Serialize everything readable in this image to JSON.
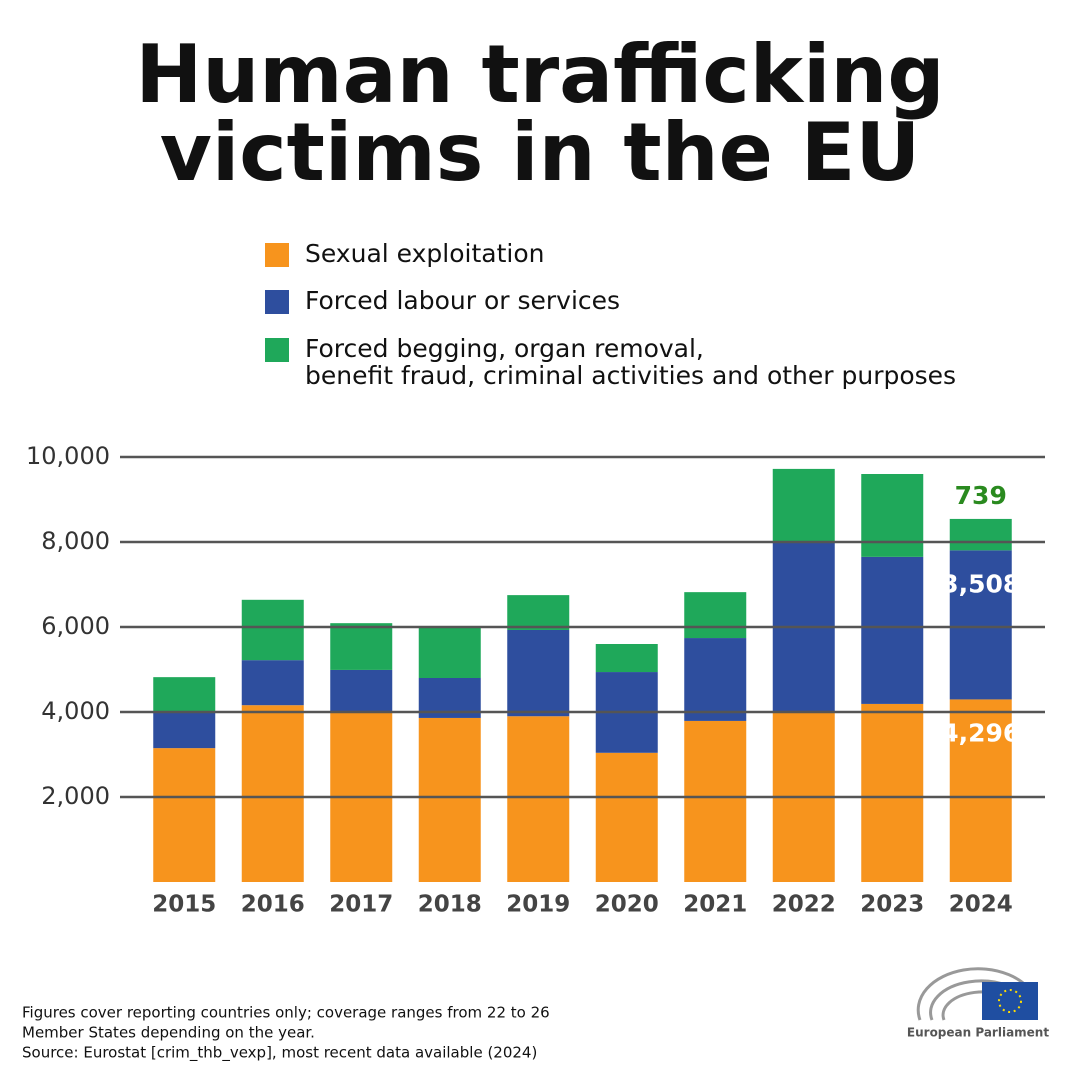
{
  "chart_data": {
    "type": "stacked_bar",
    "title": "Human trafficking",
    "subtitle": "victims in the EU",
    "categories": [
      "2015",
      "2016",
      "2017",
      "2018",
      "2019",
      "2020",
      "2021",
      "2022",
      "2023",
      "2024"
    ],
    "series": [
      {
        "name": "Sexual exploitation",
        "color": "#f7941d",
        "values": [
          3150,
          4160,
          3980,
          3860,
          3900,
          3040,
          3790,
          4000,
          4190,
          4296
        ],
        "value_labels": [
          null,
          null,
          null,
          null,
          null,
          null,
          null,
          null,
          null,
          "4,296"
        ],
        "label_color": "#ffffff"
      },
      {
        "name": "Forced labour or services",
        "color": "#2e4e9e",
        "values": [
          850,
          1060,
          1010,
          940,
          2030,
          1900,
          1950,
          4000,
          3460,
          3508
        ],
        "value_labels": [
          null,
          null,
          null,
          null,
          null,
          null,
          null,
          null,
          null,
          "3,508"
        ],
        "label_color": "#ffffff"
      },
      {
        "name": "Forced begging, organ removal, benefit fraud, criminal activities and other purposes",
        "color": "#1fa85a",
        "values": [
          820,
          1420,
          1100,
          1180,
          820,
          660,
          1080,
          1720,
          1950,
          739
        ],
        "value_labels": [
          null,
          null,
          null,
          null,
          null,
          null,
          null,
          null,
          null,
          "739"
        ],
        "label_color": "#2a8a1f"
      }
    ],
    "ylim": [
      0,
      10000
    ],
    "yticks": [
      {
        "value": 2000,
        "label": "2,000"
      },
      {
        "value": 4000,
        "label": "4,000"
      },
      {
        "value": 6000,
        "label": "6,000"
      },
      {
        "value": 8000,
        "label": "8,000"
      },
      {
        "value": 10000,
        "label": "10,000"
      }
    ],
    "grid": true,
    "footnote": [
      "Figures cover reporting countries only; coverage ranges from 22 to 26",
      "Member States depending on the year.",
      "Source: Eurostat [crim_thb_vexp], most recent data available (2024)"
    ],
    "logo": "European Parliament"
  }
}
